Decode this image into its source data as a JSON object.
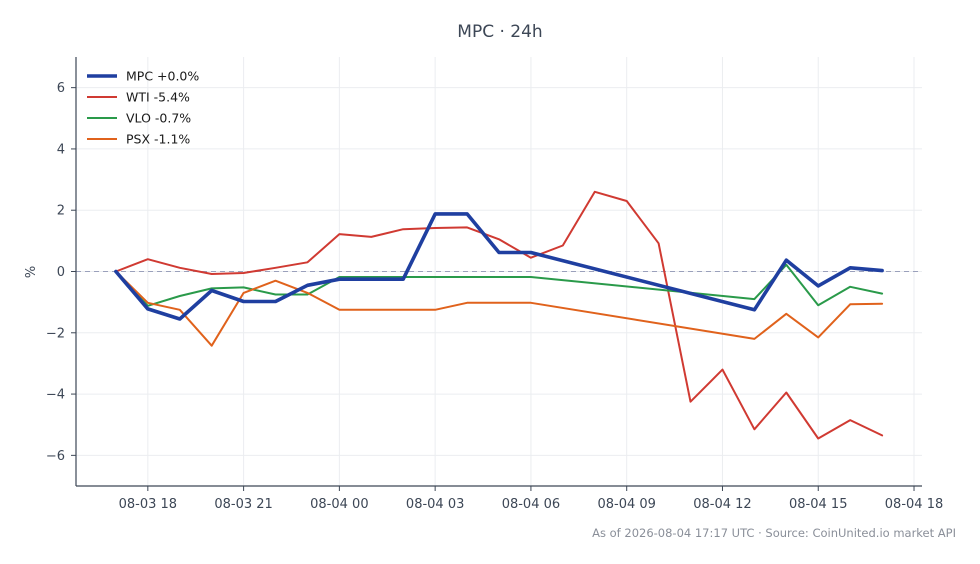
{
  "chart_data": {
    "type": "line",
    "title": "MPC · 24h",
    "xlabel": "",
    "ylabel": "%",
    "ylim": [
      -7,
      7
    ],
    "xlim_hours": [
      "2026-08-03 15:45",
      "2026-08-04 18:15"
    ],
    "x_ticks": [
      "08-03 18",
      "08-03 21",
      "08-04 00",
      "08-04 03",
      "08-04 06",
      "08-04 09",
      "08-04 12",
      "08-04 15",
      "08-04 18"
    ],
    "x_tick_times": [
      "2026-08-03 18:00",
      "2026-08-03 21:00",
      "2026-08-04 00:00",
      "2026-08-04 03:00",
      "2026-08-04 06:00",
      "2026-08-04 09:00",
      "2026-08-04 12:00",
      "2026-08-04 15:00",
      "2026-08-04 18:00"
    ],
    "y_ticks": [
      6,
      4,
      2,
      0,
      -2,
      -4,
      -6
    ],
    "y_tick_labels": [
      "6",
      "4",
      "2",
      "0",
      "−2",
      "−4",
      "−6"
    ],
    "grid": true,
    "zero_line": true,
    "legend_position": "top-left",
    "series": [
      {
        "name": "MPC +0.0%",
        "color": "#1f3fa0",
        "emphasis": true,
        "points": [
          [
            "2026-08-03 17:00",
            0.0
          ],
          [
            "2026-08-03 18:00",
            -1.22
          ],
          [
            "2026-08-03 19:00",
            -1.55
          ],
          [
            "2026-08-03 20:00",
            -0.62
          ],
          [
            "2026-08-03 21:00",
            -0.98
          ],
          [
            "2026-08-03 22:00",
            -0.98
          ],
          [
            "2026-08-03 23:00",
            -0.45
          ],
          [
            "2026-08-04 00:00",
            -0.25
          ],
          [
            "2026-08-04 01:00",
            -0.25
          ],
          [
            "2026-08-04 02:00",
            -0.25
          ],
          [
            "2026-08-04 03:00",
            1.88
          ],
          [
            "2026-08-04 04:00",
            1.88
          ],
          [
            "2026-08-04 05:00",
            0.62
          ],
          [
            "2026-08-04 06:00",
            0.62
          ],
          [
            "2026-08-04 13:00",
            -1.25
          ],
          [
            "2026-08-04 14:00",
            0.37
          ],
          [
            "2026-08-04 15:00",
            -0.47
          ],
          [
            "2026-08-04 16:00",
            0.12
          ],
          [
            "2026-08-04 17:00",
            0.03
          ]
        ]
      },
      {
        "name": "WTI -5.4%",
        "color": "#d03a32",
        "emphasis": false,
        "points": [
          [
            "2026-08-03 17:00",
            0.0
          ],
          [
            "2026-08-03 18:00",
            0.4
          ],
          [
            "2026-08-03 19:00",
            0.12
          ],
          [
            "2026-08-03 20:00",
            -0.08
          ],
          [
            "2026-08-03 21:00",
            -0.05
          ],
          [
            "2026-08-03 22:00",
            0.12
          ],
          [
            "2026-08-03 23:00",
            0.3
          ],
          [
            "2026-08-04 00:00",
            1.22
          ],
          [
            "2026-08-04 01:00",
            1.13
          ],
          [
            "2026-08-04 02:00",
            1.38
          ],
          [
            "2026-08-04 03:00",
            1.42
          ],
          [
            "2026-08-04 04:00",
            1.44
          ],
          [
            "2026-08-04 05:00",
            1.05
          ],
          [
            "2026-08-04 06:00",
            0.45
          ],
          [
            "2026-08-04 07:00",
            0.85
          ],
          [
            "2026-08-04 08:00",
            2.6
          ],
          [
            "2026-08-04 09:00",
            2.3
          ],
          [
            "2026-08-04 10:00",
            0.92
          ],
          [
            "2026-08-04 11:00",
            -4.25
          ],
          [
            "2026-08-04 12:00",
            -3.2
          ],
          [
            "2026-08-04 13:00",
            -5.15
          ],
          [
            "2026-08-04 14:00",
            -3.95
          ],
          [
            "2026-08-04 15:00",
            -5.45
          ],
          [
            "2026-08-04 16:00",
            -4.85
          ],
          [
            "2026-08-04 17:00",
            -5.35
          ]
        ]
      },
      {
        "name": "VLO -0.7%",
        "color": "#2a9a4a",
        "emphasis": false,
        "points": [
          [
            "2026-08-03 17:00",
            0.0
          ],
          [
            "2026-08-03 18:00",
            -1.12
          ],
          [
            "2026-08-03 19:00",
            -0.8
          ],
          [
            "2026-08-03 20:00",
            -0.55
          ],
          [
            "2026-08-03 21:00",
            -0.52
          ],
          [
            "2026-08-03 22:00",
            -0.75
          ],
          [
            "2026-08-03 23:00",
            -0.75
          ],
          [
            "2026-08-04 00:00",
            -0.18
          ],
          [
            "2026-08-04 06:00",
            -0.18
          ],
          [
            "2026-08-04 13:00",
            -0.9
          ],
          [
            "2026-08-04 14:00",
            0.22
          ],
          [
            "2026-08-04 15:00",
            -1.1
          ],
          [
            "2026-08-04 16:00",
            -0.5
          ],
          [
            "2026-08-04 17:00",
            -0.72
          ]
        ]
      },
      {
        "name": "PSX -1.1%",
        "color": "#e0621c",
        "emphasis": false,
        "points": [
          [
            "2026-08-03 17:00",
            0.0
          ],
          [
            "2026-08-03 18:00",
            -1.02
          ],
          [
            "2026-08-03 19:00",
            -1.25
          ],
          [
            "2026-08-03 20:00",
            -2.42
          ],
          [
            "2026-08-03 21:00",
            -0.7
          ],
          [
            "2026-08-03 22:00",
            -0.3
          ],
          [
            "2026-08-03 23:00",
            -0.7
          ],
          [
            "2026-08-04 00:00",
            -1.25
          ],
          [
            "2026-08-04 03:00",
            -1.25
          ],
          [
            "2026-08-04 04:00",
            -1.02
          ],
          [
            "2026-08-04 06:00",
            -1.02
          ],
          [
            "2026-08-04 13:00",
            -2.2
          ],
          [
            "2026-08-04 14:00",
            -1.38
          ],
          [
            "2026-08-04 15:00",
            -2.15
          ],
          [
            "2026-08-04 16:00",
            -1.07
          ],
          [
            "2026-08-04 17:00",
            -1.05
          ]
        ]
      }
    ]
  },
  "footer": "As of 2026-08-04 17:17 UTC · Source: CoinUnited.io market API"
}
